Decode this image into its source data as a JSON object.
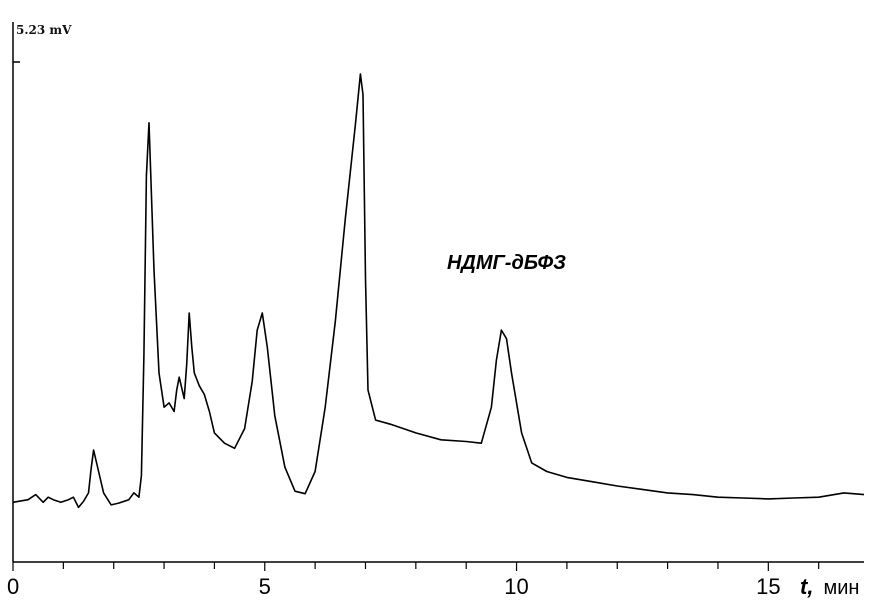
{
  "chart_data": {
    "type": "line",
    "y_top_label": "5.23 mV",
    "xlabel_symbol": "t,",
    "xlabel_unit": "мин",
    "xlim": [
      0,
      16.9
    ],
    "ylim": [
      0,
      5.23
    ],
    "x_ticks": [
      0,
      5,
      10,
      15
    ],
    "x_tick_labels": [
      "0",
      "5",
      "10",
      "15"
    ],
    "annotations": [
      {
        "text": "НДМГ-дБФЗ",
        "x": 9.8,
        "y": 2.43
      }
    ],
    "series": [
      {
        "x": [
          0.0,
          0.3,
          0.45,
          0.6,
          0.7,
          0.8,
          0.95,
          1.1,
          1.2,
          1.3,
          1.4,
          1.5,
          1.55,
          1.6,
          1.7,
          1.8,
          1.95,
          2.1,
          2.3,
          2.4,
          2.5,
          2.55,
          2.6,
          2.65,
          2.7,
          2.8,
          2.9,
          3.0,
          3.1,
          3.2,
          3.25,
          3.3,
          3.4,
          3.45,
          3.5,
          3.55,
          3.6,
          3.7,
          3.8,
          3.9,
          4.0,
          4.2,
          4.4,
          4.6,
          4.75,
          4.85,
          4.95,
          5.05,
          5.2,
          5.4,
          5.6,
          5.8,
          6.0,
          6.2,
          6.4,
          6.6,
          6.8,
          6.9,
          6.95,
          7.0,
          7.05,
          7.2,
          7.5,
          8.0,
          8.5,
          9.0,
          9.3,
          9.5,
          9.6,
          9.7,
          9.8,
          9.9,
          10.1,
          10.3,
          10.6,
          11.0,
          11.5,
          12.0,
          12.5,
          13.0,
          13.5,
          14.0,
          14.5,
          15.0,
          15.5,
          16.0,
          16.5,
          16.9
        ],
        "y": [
          0.09,
          0.12,
          0.18,
          0.09,
          0.15,
          0.12,
          0.09,
          0.12,
          0.15,
          0.03,
          0.1,
          0.2,
          0.48,
          0.7,
          0.45,
          0.2,
          0.06,
          0.08,
          0.12,
          0.2,
          0.15,
          0.4,
          1.8,
          3.9,
          4.52,
          2.8,
          1.6,
          1.2,
          1.25,
          1.15,
          1.4,
          1.55,
          1.3,
          1.7,
          2.3,
          1.9,
          1.6,
          1.45,
          1.35,
          1.15,
          0.9,
          0.78,
          0.72,
          0.95,
          1.5,
          2.1,
          2.3,
          1.9,
          1.1,
          0.5,
          0.22,
          0.19,
          0.45,
          1.2,
          2.2,
          3.4,
          4.5,
          5.09,
          4.85,
          2.7,
          1.4,
          1.05,
          1.0,
          0.9,
          0.82,
          0.8,
          0.78,
          1.2,
          1.75,
          2.1,
          2.0,
          1.6,
          0.9,
          0.55,
          0.45,
          0.38,
          0.33,
          0.28,
          0.24,
          0.2,
          0.18,
          0.15,
          0.14,
          0.13,
          0.14,
          0.15,
          0.2,
          0.18
        ]
      }
    ]
  }
}
